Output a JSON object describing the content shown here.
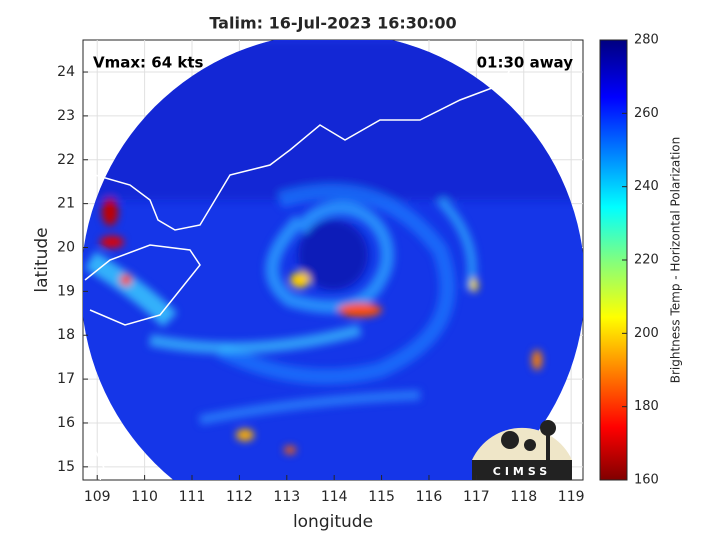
{
  "chart_data": {
    "type": "map",
    "title": "Talim: 16-Jul-2023 16:30:00",
    "annotations": [
      "Vmax: 64 kts",
      "01:30 away"
    ],
    "xlabel": "longitude",
    "ylabel": "latitude",
    "xlim": [
      108.7,
      119.25
    ],
    "ylim": [
      14.7,
      24.73
    ],
    "xticks": [
      109,
      110,
      111,
      112,
      113,
      114,
      115,
      116,
      117,
      118,
      119
    ],
    "yticks": [
      15,
      16,
      17,
      18,
      19,
      20,
      21,
      22,
      23,
      24
    ],
    "grid": true,
    "colorbar": {
      "label": "Brightness Temp - Horizontal Polarization",
      "lim": [
        160,
        280
      ],
      "ticks": [
        160,
        180,
        200,
        220,
        240,
        260,
        280
      ]
    },
    "logo": "CIMSS"
  }
}
